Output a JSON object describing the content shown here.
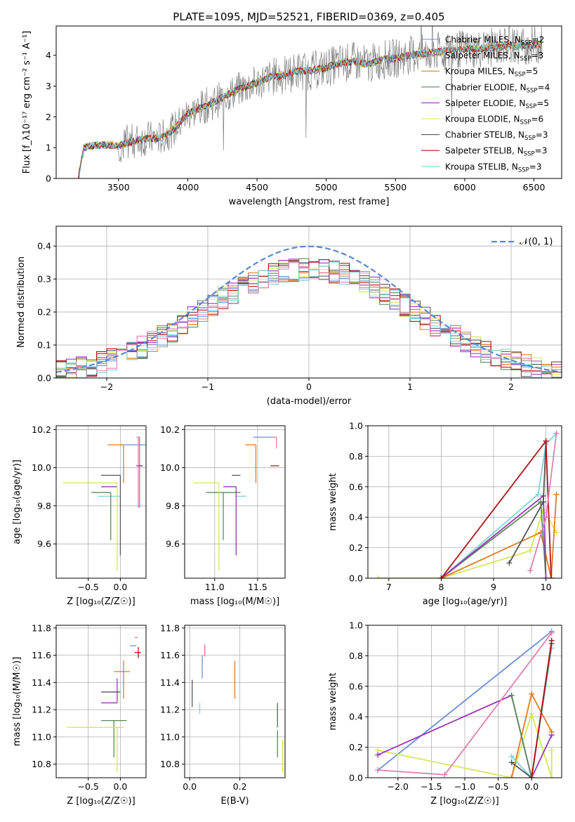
{
  "colors": {
    "s1": "#6a8fd8",
    "s2": "#9b9b9b",
    "s3": "#e07b1f",
    "s4": "#5a8a5a",
    "s5": "#9a35b5",
    "s6": "#d7e65a",
    "s7": "#555555",
    "s8": "#b01515",
    "s9": "#7fd3d8",
    "s10": "#e080b0",
    "gauss": "#5a88d0",
    "data": "#808080"
  },
  "chart_data": [
    {
      "id": "spectrum",
      "type": "line",
      "title": "PLATE=1095, MJD=52521, FIBERID=0369, z=0.405",
      "xlabel": "wavelength [Angstrom, rest frame]",
      "ylabel": "Flux [f_λ10⁻¹⁷ erg cm⁻² s⁻¹ A⁻¹]",
      "xlim": [
        3050,
        6700
      ],
      "ylim": [
        0,
        4.95
      ],
      "xticks": [
        3500,
        4000,
        4500,
        5000,
        5500,
        6000,
        6500
      ],
      "yticks": [
        0,
        1,
        2,
        3,
        4
      ],
      "legend_position": "top-right",
      "legend": [
        {
          "label": "Chabrier MILES, N",
          "sub": "SSP",
          "tail": "=2",
          "color": "s1"
        },
        {
          "label": "Salpeter MILES, N",
          "sub": "SSP",
          "tail": "=3",
          "color": "s2"
        },
        {
          "label": "Kroupa MILES, N",
          "sub": "SSP",
          "tail": "=5",
          "color": "s3"
        },
        {
          "label": "Chabrier ELODIE, N",
          "sub": "SSP",
          "tail": "=4",
          "color": "s4"
        },
        {
          "label": "Salpeter ELODIE, N",
          "sub": "SSP",
          "tail": "=5",
          "color": "s5"
        },
        {
          "label": "Kroupa ELODIE, N",
          "sub": "SSP",
          "tail": "=6",
          "color": "s6"
        },
        {
          "label": "Chabrier STELIB, N",
          "sub": "SSP",
          "tail": "=3",
          "color": "s7"
        },
        {
          "label": "Salpeter STELIB, N",
          "sub": "SSP",
          "tail": "=3",
          "color": "s8"
        },
        {
          "label": "Kroupa STELIB, N",
          "sub": "SSP",
          "tail": "=3",
          "color": "s9"
        }
      ],
      "continuum": {
        "x": [
          3210,
          3250,
          3300,
          3400,
          3500,
          3600,
          3700,
          3800,
          3900,
          4000,
          4100,
          4200,
          4300,
          4400,
          4500,
          4600,
          4700,
          4800,
          4900,
          5000,
          5100,
          5200,
          5300,
          5400,
          5500,
          5600,
          5700,
          5800,
          5900,
          6000,
          6100,
          6200,
          6300,
          6400,
          6560
        ],
        "y": [
          0.0,
          1.0,
          1.05,
          1.1,
          1.05,
          1.2,
          1.3,
          1.3,
          1.6,
          2.1,
          2.3,
          2.5,
          2.75,
          2.95,
          3.1,
          3.3,
          3.35,
          3.5,
          3.5,
          3.6,
          3.75,
          3.8,
          3.7,
          3.85,
          3.9,
          4.0,
          4.05,
          4.1,
          4.15,
          4.2,
          4.2,
          4.25,
          4.3,
          4.3,
          4.35
        ]
      }
    },
    {
      "id": "residuals",
      "type": "line",
      "xlabel": "(data-model)/error",
      "ylabel": "Normed distribution",
      "xlim": [
        -2.5,
        2.5
      ],
      "ylim": [
        0,
        0.46
      ],
      "xticks": [
        -2,
        -1,
        0,
        1,
        2
      ],
      "yticks": [
        0.0,
        0.1,
        0.2,
        0.3,
        0.4
      ],
      "legend": "𝒩(0, 1)",
      "legend_position": "top-right",
      "bin_width": 0.1
    },
    {
      "id": "age_vs_Z",
      "type": "scatter",
      "xlabel": "Z [log₁₀(Z/Z☉)]",
      "ylabel": "age  [log₁₀(age/yr)]",
      "xlim": [
        -1.0,
        0.4
      ],
      "ylim": [
        9.42,
        10.22
      ],
      "xticks": [
        -0.5,
        0.0
      ],
      "yticks": [
        9.6,
        9.8,
        10.0,
        10.2
      ],
      "points": [
        {
          "x": 0.3,
          "y": 10.12,
          "xerr": [
            0.3,
            0.3
          ],
          "yerr": [
            0.33,
            0.04
          ],
          "color": "s1"
        },
        {
          "x": 0.0,
          "y": 9.85,
          "xerr": [
            0.35,
            0.0
          ],
          "yerr": [
            0.0,
            0.0
          ],
          "color": "s9"
        },
        {
          "x": 0.05,
          "y": 10.12,
          "xerr": [
            0.25,
            0.0
          ],
          "yerr": [
            0.2,
            0.0
          ],
          "color": "s3"
        },
        {
          "x": -0.15,
          "y": 9.87,
          "xerr": [
            0.3,
            0.0
          ],
          "yerr": [
            0.25,
            0.0
          ],
          "color": "s4"
        },
        {
          "x": -0.05,
          "y": 9.9,
          "xerr": [
            0.25,
            0.0
          ],
          "yerr": [
            0.0,
            0.0
          ],
          "color": "s5"
        },
        {
          "x": -0.05,
          "y": 9.92,
          "xerr": [
            0.85,
            0.0
          ],
          "yerr": [
            0.46,
            0.0
          ],
          "color": "s6"
        },
        {
          "x": 0.0,
          "y": 9.96,
          "xerr": [
            0.3,
            0.0
          ],
          "yerr": [
            0.42,
            0.0
          ],
          "color": "s7"
        },
        {
          "x": 0.3,
          "y": 10.01,
          "xerr": [
            0.05,
            0.05
          ],
          "yerr": [
            0.0,
            0.0
          ],
          "color": "s8"
        },
        {
          "x": 0.28,
          "y": 10.16,
          "xerr": [
            0.03,
            0.03
          ],
          "yerr": [
            0.37,
            0.0
          ],
          "color": "s10"
        }
      ]
    },
    {
      "id": "age_vs_mass",
      "type": "scatter",
      "xlabel": "mass [log₁₀(M/M☉)]",
      "ylabel": "",
      "xlim": [
        10.65,
        11.82
      ],
      "ylim": [
        9.42,
        10.22
      ],
      "xticks": [
        11.0,
        11.5
      ],
      "yticks": [
        9.6,
        9.8,
        10.0,
        10.2
      ],
      "points": [
        {
          "x": 11.65,
          "y": 10.16,
          "xerr": [
            0.2,
            0.05
          ],
          "yerr": [
            0.0,
            0.0
          ],
          "color": "s1"
        },
        {
          "x": 11.25,
          "y": 9.85,
          "xerr": [
            0.0,
            0.12
          ],
          "yerr": [
            0.0,
            0.0
          ],
          "color": "s9"
        },
        {
          "x": 11.48,
          "y": 10.12,
          "xerr": [
            0.12,
            0.0
          ],
          "yerr": [
            0.2,
            0.0
          ],
          "color": "s3"
        },
        {
          "x": 11.1,
          "y": 9.87,
          "xerr": [
            0.2,
            0.2
          ],
          "yerr": [
            0.25,
            0.0
          ],
          "color": "s4"
        },
        {
          "x": 11.25,
          "y": 9.9,
          "xerr": [
            0.15,
            0.0
          ],
          "yerr": [
            0.36,
            0.0
          ],
          "color": "s5"
        },
        {
          "x": 11.05,
          "y": 9.92,
          "xerr": [
            0.3,
            0.0
          ],
          "yerr": [
            0.46,
            0.0
          ],
          "color": "s6"
        },
        {
          "x": 11.3,
          "y": 9.96,
          "xerr": [
            0.1,
            0.0
          ],
          "yerr": [
            0.0,
            0.0
          ],
          "color": "s7"
        },
        {
          "x": 11.65,
          "y": 10.01,
          "xerr": [
            0.0,
            0.1
          ],
          "yerr": [
            0.0,
            0.0
          ],
          "color": "s8"
        },
        {
          "x": 11.72,
          "y": 10.16,
          "xerr": [
            0.05,
            0.0
          ],
          "yerr": [
            0.06,
            0.0
          ],
          "color": "s10"
        }
      ]
    },
    {
      "id": "mass_weight_vs_age",
      "type": "line",
      "xlabel": "age  [log₁₀(age/yr)]",
      "ylabel": "mass weight",
      "xlim": [
        6.6,
        10.3
      ],
      "ylim": [
        0,
        1.0
      ],
      "xticks": [
        7,
        8,
        9,
        10
      ],
      "yticks": [
        0.0,
        0.2,
        0.4,
        0.6,
        0.8,
        1.0
      ],
      "series": [
        {
          "color": "s9",
          "x": [
            6.8,
            8.0,
            9.85,
            10.0,
            10.2
          ],
          "y": [
            0.0,
            0.0,
            0.55,
            0.88,
            0.95
          ]
        },
        {
          "color": "s6",
          "x": [
            6.8,
            8.0,
            9.7,
            9.95,
            10.2
          ],
          "y": [
            0.0,
            0.0,
            0.18,
            0.45,
            0.3
          ]
        },
        {
          "color": "s3",
          "x": [
            8.0,
            9.9,
            10.1,
            10.2
          ],
          "y": [
            0.0,
            0.3,
            0.0,
            0.55
          ]
        },
        {
          "color": "s4",
          "x": [
            8.0,
            9.9,
            10.0
          ],
          "y": [
            0.0,
            0.5,
            0.0
          ]
        },
        {
          "color": "s5",
          "x": [
            8.0,
            9.95,
            10.0
          ],
          "y": [
            0.0,
            0.54,
            0.0
          ]
        },
        {
          "color": "s7",
          "x": [
            9.3,
            9.95,
            10.0
          ],
          "y": [
            0.1,
            0.5,
            0.9
          ]
        },
        {
          "color": "s8",
          "x": [
            8.0,
            10.0,
            10.1
          ],
          "y": [
            0.0,
            0.9,
            0.0
          ]
        },
        {
          "color": "s10",
          "x": [
            9.7,
            10.0,
            10.2
          ],
          "y": [
            0.05,
            0.4,
            0.95
          ]
        }
      ]
    },
    {
      "id": "mass_vs_Z",
      "type": "scatter",
      "xlabel": "Z [log₁₀(Z/Z☉)]",
      "ylabel": "mass [log₁₀(M/M☉)]",
      "xlim": [
        -1.0,
        0.4
      ],
      "ylim": [
        10.7,
        11.82
      ],
      "xticks": [
        -0.5,
        0.0
      ],
      "yticks": [
        10.8,
        11.0,
        11.2,
        11.4,
        11.6,
        11.8
      ],
      "points": [
        {
          "x": 0.25,
          "y": 11.67,
          "xerr": [
            0.1,
            0.0
          ],
          "yerr": [
            0.0,
            0.0
          ],
          "color": "s1"
        },
        {
          "x": 0.27,
          "y": 11.21,
          "xerr": [
            0.0,
            0.0
          ],
          "yerr": [
            0.0,
            0.0
          ],
          "color": "s9"
        },
        {
          "x": 0.05,
          "y": 11.48,
          "xerr": [
            0.15,
            0.1
          ],
          "yerr": [
            0.2,
            0.08
          ],
          "color": "s3"
        },
        {
          "x": -0.1,
          "y": 11.12,
          "xerr": [
            0.2,
            0.2
          ],
          "yerr": [
            0.27,
            0.0
          ],
          "color": "s4"
        },
        {
          "x": -0.05,
          "y": 11.25,
          "xerr": [
            0.25,
            0.0
          ],
          "yerr": [
            0.0,
            0.18
          ],
          "color": "s5"
        },
        {
          "x": -0.05,
          "y": 11.07,
          "xerr": [
            0.78,
            0.1
          ],
          "yerr": [
            0.33,
            0.0
          ],
          "color": "s6"
        },
        {
          "x": 0.0,
          "y": 11.33,
          "xerr": [
            0.3,
            0.0
          ],
          "yerr": [
            0.0,
            0.0
          ],
          "color": "s7"
        },
        {
          "x": 0.28,
          "y": 11.62,
          "xerr": [
            0.06,
            0.04
          ],
          "yerr": [
            0.04,
            0.04
          ],
          "color": "s8"
        },
        {
          "x": 0.27,
          "y": 11.73,
          "xerr": [
            0.05,
            0.0
          ],
          "yerr": [
            0.0,
            0.0
          ],
          "color": "s10"
        }
      ]
    },
    {
      "id": "mass_vs_ebv",
      "type": "scatter",
      "xlabel": "E(B-V)",
      "ylabel": "",
      "xlim": [
        -0.02,
        0.38
      ],
      "ylim": [
        10.7,
        11.82
      ],
      "xticks": [
        0.0,
        0.2
      ],
      "yticks": [
        10.8,
        11.0,
        11.2,
        11.4,
        11.6,
        11.8
      ],
      "points": [
        {
          "x": 0.05,
          "y": 11.6,
          "xerr": [
            0.0,
            0.0
          ],
          "yerr": [
            0.17,
            0.0
          ],
          "color": "s1"
        },
        {
          "x": 0.04,
          "y": 11.25,
          "xerr": [
            0.0,
            0.0
          ],
          "yerr": [
            0.08,
            0.0
          ],
          "color": "s9"
        },
        {
          "x": 0.18,
          "y": 11.42,
          "xerr": [
            0.0,
            0.0
          ],
          "yerr": [
            0.14,
            0.14
          ],
          "color": "s3"
        },
        {
          "x": 0.35,
          "y": 11.05,
          "xerr": [
            0.0,
            0.0
          ],
          "yerr": [
            0.2,
            0.0
          ],
          "color": "s4"
        },
        {
          "x": 0.35,
          "y": 11.25,
          "xerr": [
            0.0,
            0.0
          ],
          "yerr": [
            0.18,
            0.0
          ],
          "color": "s5"
        },
        {
          "x": 0.37,
          "y": 10.98,
          "xerr": [
            0.0,
            0.0
          ],
          "yerr": [
            0.24,
            0.0
          ],
          "color": "s6"
        },
        {
          "x": 0.01,
          "y": 11.32,
          "xerr": [
            0.0,
            0.0
          ],
          "yerr": [
            0.1,
            0.1
          ],
          "color": "s7"
        },
        {
          "x": 0.06,
          "y": 11.67,
          "xerr": [
            0.0,
            0.0
          ],
          "yerr": [
            0.08,
            0.0
          ],
          "color": "s8"
        },
        {
          "x": 0.06,
          "y": 11.68,
          "xerr": [
            0.0,
            0.0
          ],
          "yerr": [
            0.09,
            0.0
          ],
          "color": "s10"
        }
      ]
    },
    {
      "id": "mass_weight_vs_Z",
      "type": "line",
      "xlabel": "Z [log₁₀(Z/Z☉)]",
      "ylabel": "mass weight",
      "xlim": [
        -2.45,
        0.45
      ],
      "ylim": [
        0,
        1.0
      ],
      "xticks": [
        -2.0,
        -1.5,
        -1.0,
        -0.5,
        0.0
      ],
      "yticks": [
        0.0,
        0.2,
        0.4,
        0.6,
        0.8,
        1.0
      ],
      "series": [
        {
          "color": "s1",
          "x": [
            -2.3,
            0.3
          ],
          "y": [
            0.05,
            0.96
          ]
        },
        {
          "color": "s6",
          "x": [
            -2.3,
            -0.3,
            0.0,
            0.3,
            0.3
          ],
          "y": [
            0.18,
            0.0,
            0.42,
            0.0,
            0.18
          ]
        },
        {
          "color": "s5",
          "x": [
            -2.3,
            -0.3,
            0.0,
            0.3
          ],
          "y": [
            0.15,
            0.54,
            0.0,
            0.28
          ]
        },
        {
          "color": "s10",
          "x": [
            -2.3,
            -1.3,
            0.3
          ],
          "y": [
            0.05,
            0.02,
            0.95
          ]
        },
        {
          "color": "s3",
          "x": [
            -0.3,
            0.0,
            0.3
          ],
          "y": [
            0.0,
            0.55,
            0.3
          ]
        },
        {
          "color": "s4",
          "x": [
            -0.3,
            0.0
          ],
          "y": [
            0.54,
            0.0
          ]
        },
        {
          "color": "s9",
          "x": [
            -0.3,
            0.0,
            0.3
          ],
          "y": [
            0.14,
            0.0,
            0.85
          ]
        },
        {
          "color": "s7",
          "x": [
            -0.3,
            0.0,
            0.3
          ],
          "y": [
            0.1,
            0.0,
            0.88
          ]
        },
        {
          "color": "s8",
          "x": [
            0.0,
            0.3
          ],
          "y": [
            0.0,
            0.9
          ]
        }
      ]
    }
  ]
}
